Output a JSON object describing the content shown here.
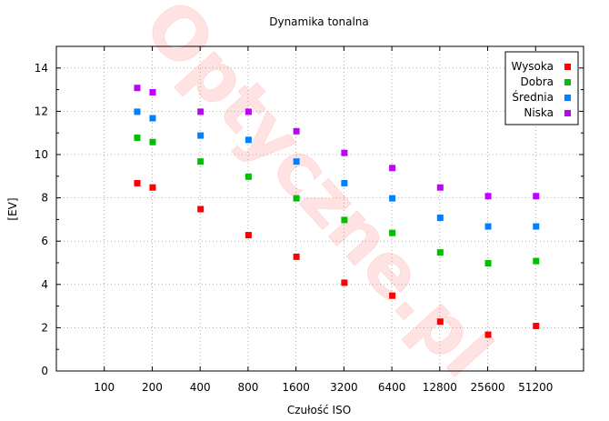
{
  "watermark": "Optyczne.pl",
  "chart_data": {
    "type": "scatter",
    "title": "Dynamika tonalna",
    "xlabel": "Czułość ISO",
    "ylabel": "[EV]",
    "x_scale": "log2",
    "x_ticks": [
      100,
      200,
      400,
      800,
      1600,
      3200,
      6400,
      12800,
      25600,
      51200
    ],
    "xlim": [
      50,
      102400
    ],
    "ylim": [
      0,
      15
    ],
    "y_ticks": [
      0,
      2,
      4,
      6,
      8,
      10,
      12,
      14
    ],
    "grid": true,
    "legend_position": "top-right",
    "x": [
      160,
      200,
      400,
      800,
      1600,
      3200,
      6400,
      12800,
      25600,
      51200
    ],
    "series": [
      {
        "name": "Wysoka",
        "color": "#ff0000",
        "values": [
          8.7,
          8.5,
          7.5,
          6.3,
          5.3,
          4.1,
          3.5,
          2.3,
          1.7,
          2.1
        ]
      },
      {
        "name": "Dobra",
        "color": "#00c000",
        "values": [
          10.8,
          10.6,
          9.7,
          9.0,
          8.0,
          7.0,
          6.4,
          5.5,
          5.0,
          5.1
        ]
      },
      {
        "name": "Średnia",
        "color": "#0080ff",
        "values": [
          12.0,
          11.7,
          10.9,
          10.7,
          9.7,
          8.7,
          8.0,
          7.1,
          6.7,
          6.7
        ]
      },
      {
        "name": "Niska",
        "color": "#c000ff",
        "values": [
          13.1,
          12.9,
          12.0,
          12.0,
          11.1,
          10.1,
          9.4,
          8.5,
          8.1,
          8.1
        ]
      }
    ]
  }
}
